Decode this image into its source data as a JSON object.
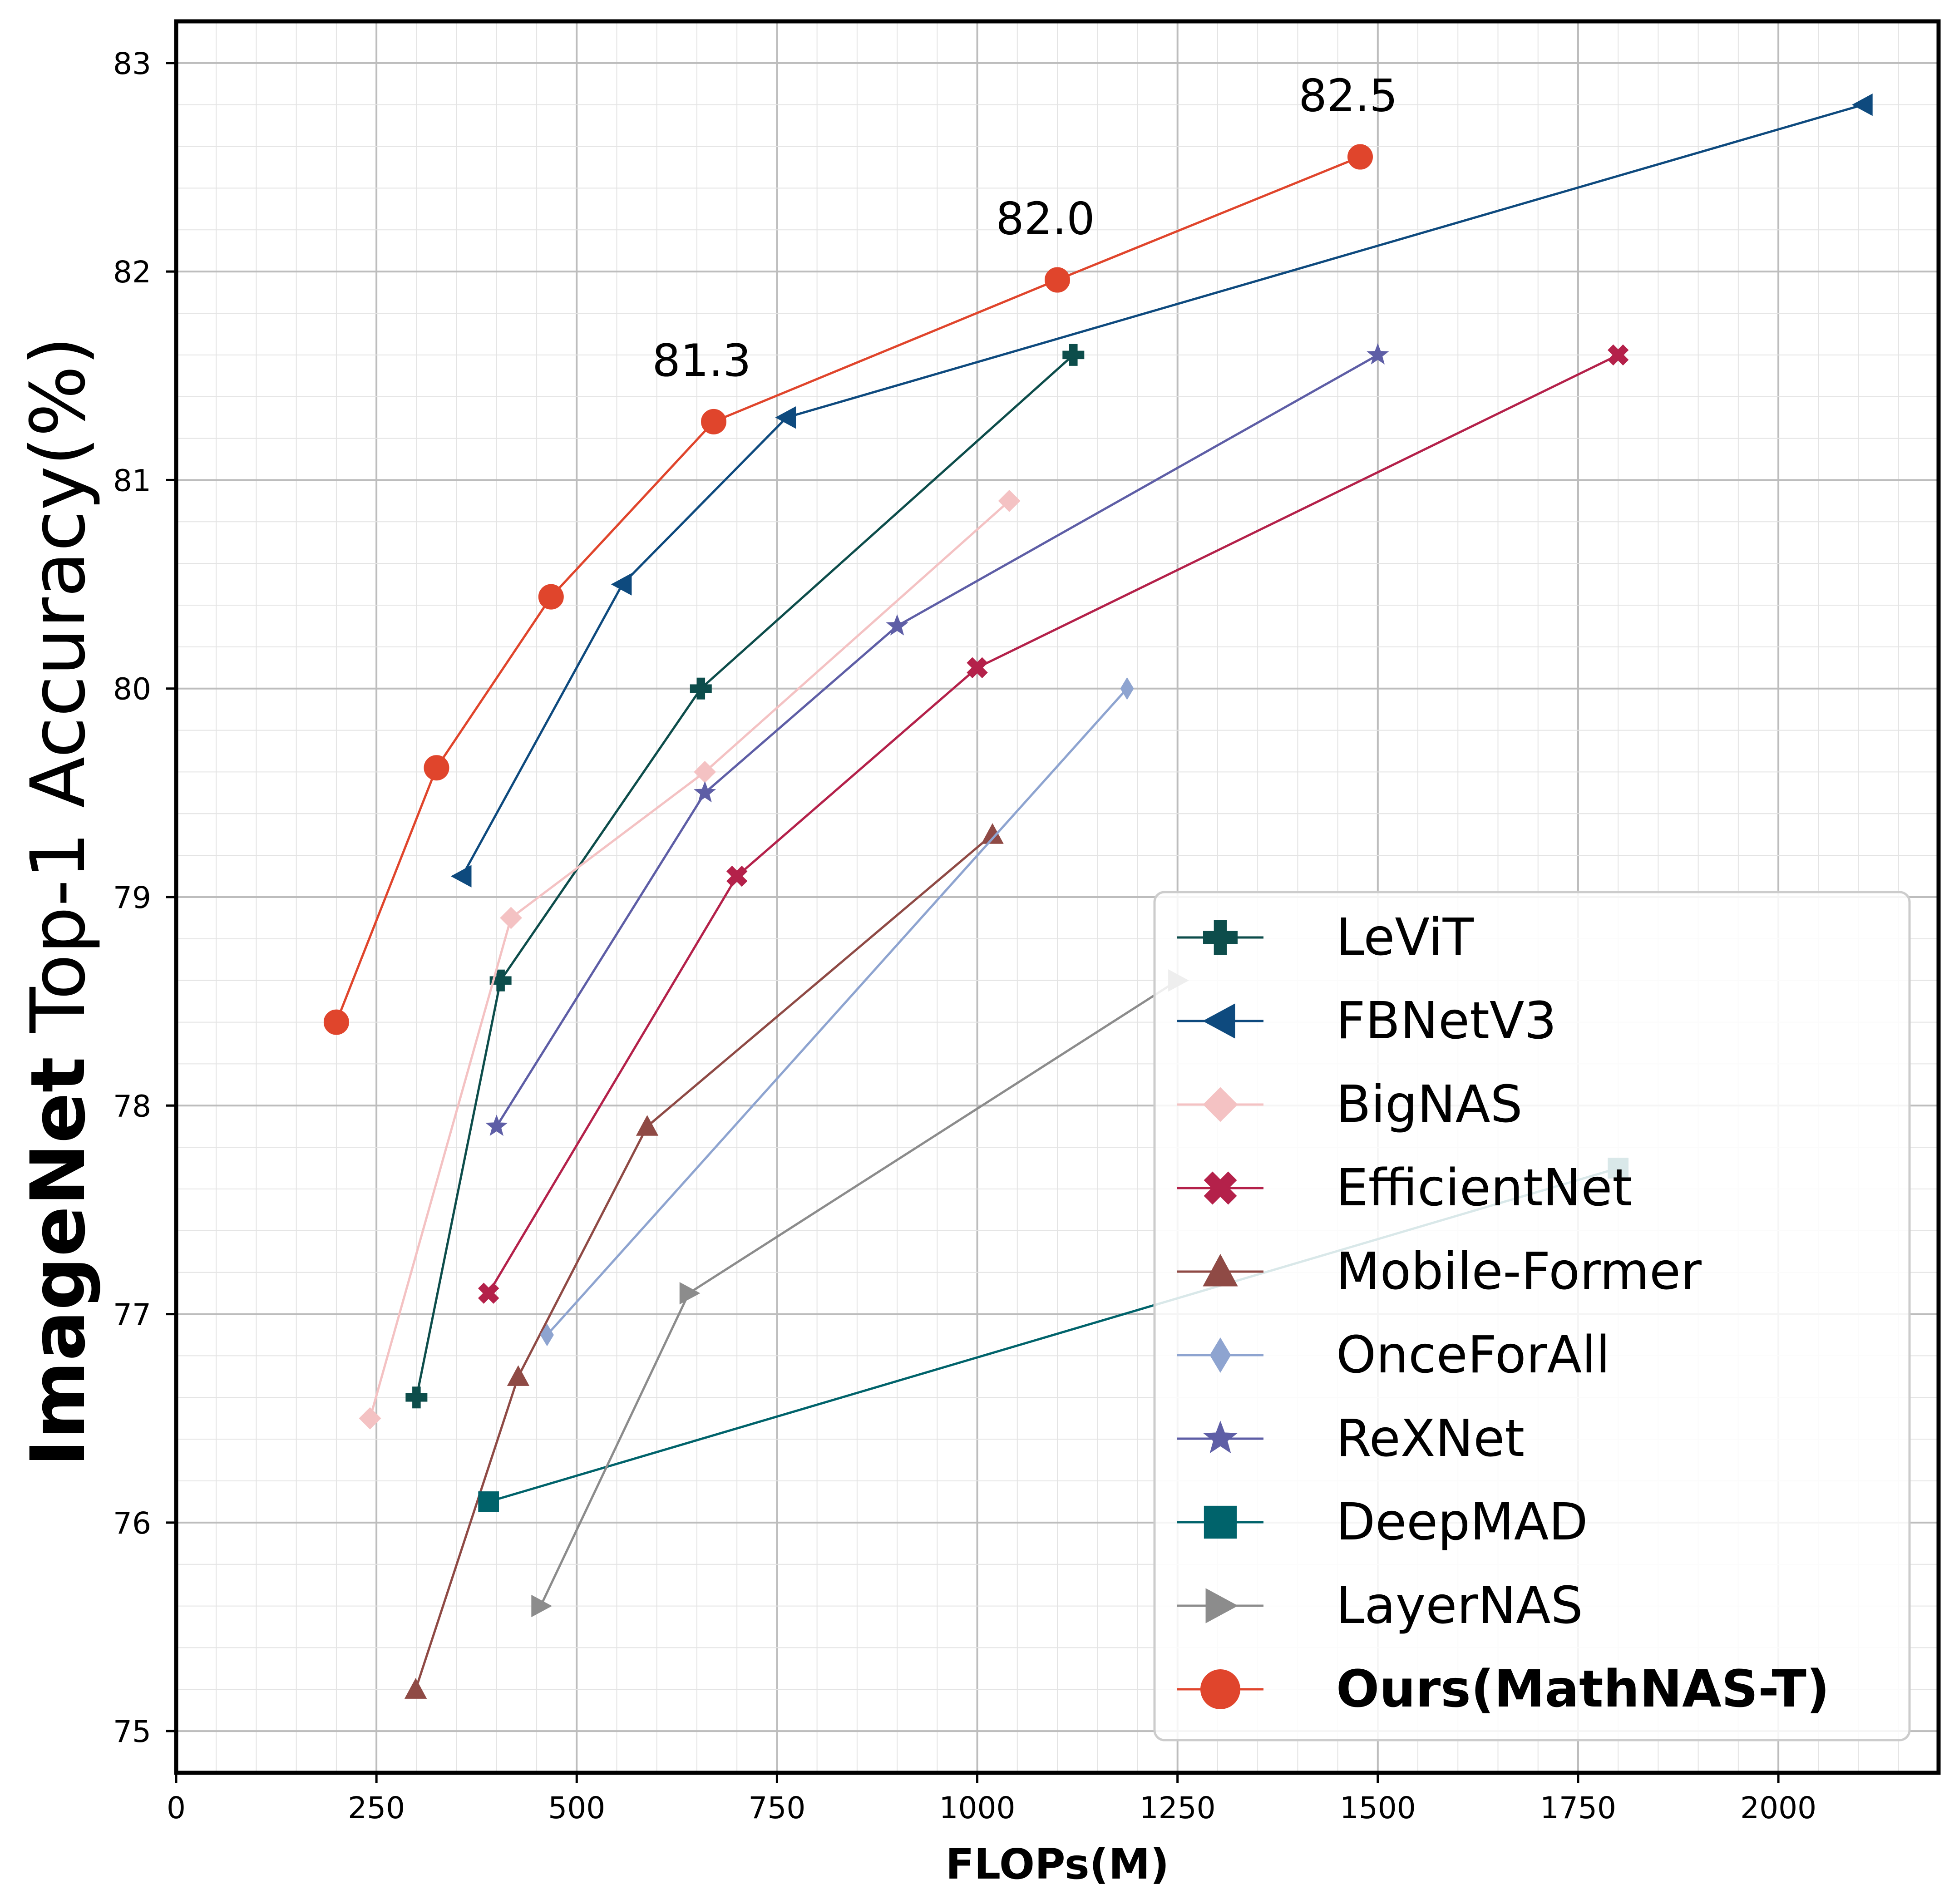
{
  "chart_data": {
    "type": "line",
    "xlabel": "FLOPs(M)",
    "ylabel_bold": "ImageNet",
    "ylabel_rest": " Top-1 Accuracy(%)",
    "xlim": [
      0,
      2200
    ],
    "ylim": [
      74.8,
      83.2
    ],
    "xticks": [
      0,
      250,
      500,
      750,
      1000,
      1250,
      1500,
      1750,
      2000
    ],
    "yticks": [
      75,
      76,
      77,
      78,
      79,
      80,
      81,
      82,
      83
    ],
    "grid": true,
    "legend_position": "lower-right",
    "series": [
      {
        "name": "LeViT",
        "color": "#0d4d4b",
        "marker": "plus",
        "x": [
          300,
          405,
          655,
          1120
        ],
        "y": [
          76.6,
          78.6,
          80.0,
          81.6
        ]
      },
      {
        "name": "FBNetV3",
        "color": "#0e4a7e",
        "marker": "triangle-left",
        "x": [
          357,
          557,
          762,
          2106
        ],
        "y": [
          79.1,
          80.5,
          81.3,
          82.8
        ]
      },
      {
        "name": "BigNAS",
        "color": "#f4c2c3",
        "marker": "diamond",
        "x": [
          242,
          418,
          660,
          1040
        ],
        "y": [
          76.5,
          78.9,
          79.6,
          80.9
        ]
      },
      {
        "name": "EfficientNet",
        "color": "#b4214a",
        "marker": "x",
        "x": [
          390,
          700,
          1000,
          1800
        ],
        "y": [
          77.1,
          79.1,
          80.1,
          81.6
        ]
      },
      {
        "name": "Mobile-Former",
        "color": "#8f4a45",
        "marker": "triangle-up",
        "x": [
          299,
          427,
          588,
          1019
        ],
        "y": [
          75.2,
          76.7,
          77.9,
          79.3
        ]
      },
      {
        "name": "OnceForAll",
        "color": "#8ea4d0",
        "marker": "thin-diamond",
        "x": [
          463,
          1187
        ],
        "y": [
          76.9,
          80.0
        ]
      },
      {
        "name": "ReXNet",
        "color": "#5e5ea6",
        "marker": "star",
        "x": [
          400,
          660,
          900,
          1500
        ],
        "y": [
          77.9,
          79.5,
          80.3,
          81.6
        ]
      },
      {
        "name": "DeepMAD",
        "color": "#00636b",
        "marker": "square",
        "x": [
          390,
          1800
        ],
        "y": [
          76.1,
          77.7
        ]
      },
      {
        "name": "LayerNAS",
        "color": "#8c8c8c",
        "marker": "triangle-right",
        "x": [
          455,
          640,
          1250
        ],
        "y": [
          75.6,
          77.1,
          78.6
        ]
      },
      {
        "name": "Ours(MathNAS-T)",
        "color": "#e0452c",
        "marker": "circle",
        "bold": true,
        "x": [
          200,
          325,
          468,
          671,
          1100,
          1478
        ],
        "y": [
          78.4,
          79.62,
          80.44,
          81.28,
          81.96,
          82.55
        ]
      }
    ],
    "annotations": [
      {
        "text": "81.3",
        "x": 656,
        "y": 81.5
      },
      {
        "text": "82.0",
        "x": 1085,
        "y": 82.18
      },
      {
        "text": "82.5",
        "x": 1463,
        "y": 82.77
      }
    ]
  }
}
